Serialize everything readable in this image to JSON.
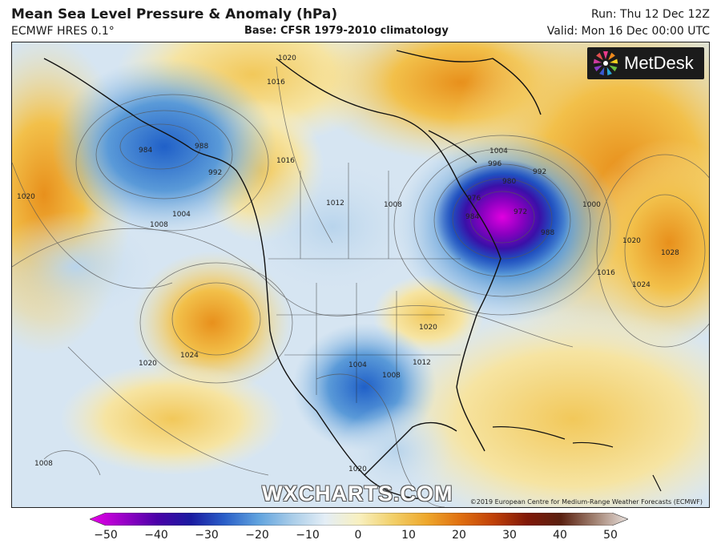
{
  "header": {
    "title": "Mean Sea Level Pressure & Anomaly (hPa)",
    "model": "ECMWF HRES 0.1°",
    "base": "Base: CFSR 1979-2010 climatology",
    "run": "Run: Thu 12 Dec 12Z",
    "valid": "Valid: Mon 16 Dec 00:00 UTC"
  },
  "logo": {
    "text": "MetDesk"
  },
  "watermark": "WXCHARTS.COM",
  "copyright": "©2019 European Centre for Medium-Range Weather Forecasts (ECMWF)",
  "isobar_labels": [
    "1020",
    "1016",
    "1016",
    "1020",
    "1012",
    "984",
    "988",
    "992",
    "1004",
    "1008",
    "1008",
    "1004",
    "996",
    "992",
    "980",
    "976",
    "984",
    "972",
    "988",
    "1000",
    "1016",
    "1020",
    "1024",
    "1028",
    "1020",
    "1024",
    "1020",
    "1008",
    "1004",
    "1008",
    "1012",
    "1020"
  ],
  "colorbar": {
    "ticks": [
      "−50",
      "−40",
      "−30",
      "−20",
      "−10",
      "0",
      "10",
      "20",
      "30",
      "40",
      "50"
    ],
    "colors": [
      "#e800e8",
      "#9a00c8",
      "#4a00a8",
      "#1a1aa0",
      "#2a5ec8",
      "#5fa2de",
      "#a8cce8",
      "#e4eef6",
      "#f8f0c0",
      "#f2d06a",
      "#eea82c",
      "#e07010",
      "#c04008",
      "#801808",
      "#5a2010",
      "#a08070",
      "#e8e0dc"
    ]
  }
}
